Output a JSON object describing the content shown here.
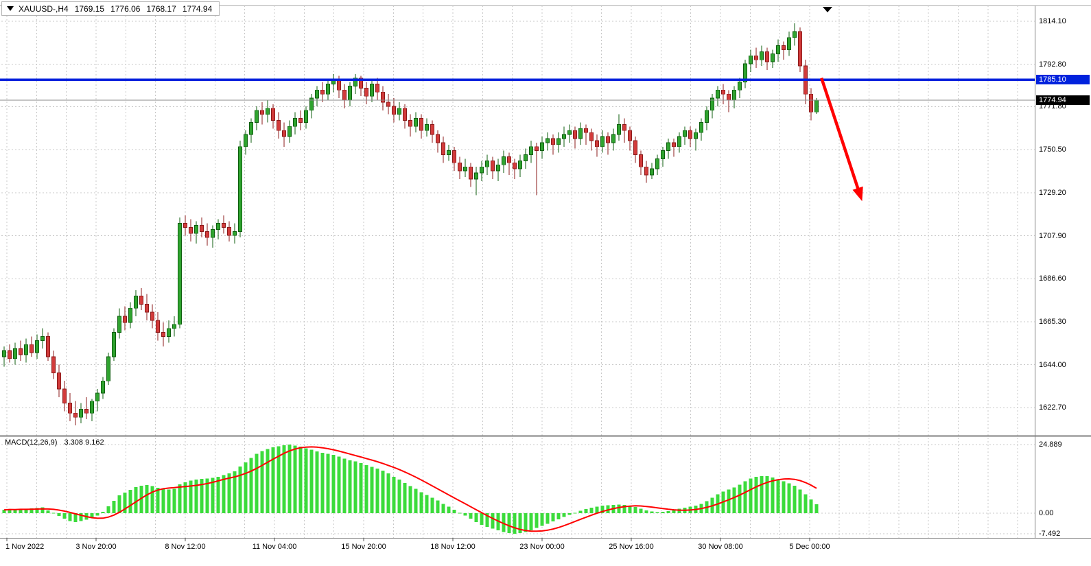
{
  "header": {
    "dropdown_icon": "triangle-down-icon",
    "symbol_period": "XAUUSD-,H4",
    "open": "1769.15",
    "high": "1776.06",
    "low": "1768.17",
    "close": "1774.94"
  },
  "colors": {
    "background": "#FFFFFF",
    "grid": "#C8C8C8",
    "up_body": "#2FA32F",
    "up_border": "#0E5E0E",
    "down_body": "#D23B3B",
    "down_border": "#8B1A1A",
    "resistance_line": "#0022DD",
    "current_price_flag": "#000000",
    "macd_histogram": "#3BDB3B",
    "macd_signal": "#FF0000",
    "arrow": "#FF0000"
  },
  "chart_data": [
    {
      "type": "candlestick",
      "symbol": "XAUUSD-",
      "timeframe": "H4",
      "title": "XAUUSD-,H4",
      "grid": true,
      "y_ticks": [
        "1814.10",
        "1792.80",
        "1771.80",
        "1750.50",
        "1729.20",
        "1707.90",
        "1686.60",
        "1665.30",
        "1644.00",
        "1622.70"
      ],
      "y_range": [
        1608.9,
        1821.9
      ],
      "x_tick_labels": [
        "1 Nov 2022",
        "3 Nov 20:00",
        "8 Nov 12:00",
        "11 Nov 04:00",
        "15 Nov 20:00",
        "18 Nov 12:00",
        "23 Nov 00:00",
        "25 Nov 16:00",
        "30 Nov 08:00",
        "5 Dec 00:00"
      ],
      "up_color": "#2FA32F",
      "up_wick": "#0E5E0E",
      "down_color": "#D23B3B",
      "down_wick": "#8B1A1A",
      "horizontal_line": {
        "price": 1785.1,
        "label": "1785.10",
        "color": "#0022DD"
      },
      "current_price": {
        "price": 1774.94,
        "label": "1774.94",
        "flag_color": "#000000"
      },
      "trend_arrow": {
        "name": "sell-signal-arrow",
        "from": {
          "bar": 148.9,
          "price": 1786.0
        },
        "to": {
          "bar": 156.3,
          "price": 1725.0
        },
        "color": "#FF0000"
      },
      "candles": [
        [
          1648,
          1653,
          1643,
          1651
        ],
        [
          1651,
          1654,
          1645,
          1647
        ],
        [
          1647,
          1655,
          1644,
          1652
        ],
        [
          1652,
          1656,
          1646,
          1649
        ],
        [
          1649,
          1657,
          1645,
          1654
        ],
        [
          1654,
          1658,
          1648,
          1650
        ],
        [
          1650,
          1659,
          1647,
          1656
        ],
        [
          1656,
          1662,
          1652,
          1658
        ],
        [
          1658,
          1660,
          1646,
          1648
        ],
        [
          1648,
          1651,
          1637,
          1640
        ],
        [
          1640,
          1644,
          1628,
          1632
        ],
        [
          1632,
          1636,
          1621,
          1625
        ],
        [
          1625,
          1630,
          1616,
          1620
        ],
        [
          1620,
          1626,
          1614,
          1618
        ],
        [
          1618,
          1625,
          1615,
          1622
        ],
        [
          1622,
          1628,
          1617,
          1620
        ],
        [
          1620,
          1627,
          1616,
          1626
        ],
        [
          1626,
          1632,
          1621,
          1630
        ],
        [
          1630,
          1638,
          1627,
          1636
        ],
        [
          1636,
          1650,
          1634,
          1648
        ],
        [
          1648,
          1662,
          1646,
          1660
        ],
        [
          1660,
          1672,
          1657,
          1668
        ],
        [
          1668,
          1673,
          1661,
          1665
        ],
        [
          1665,
          1675,
          1662,
          1672
        ],
        [
          1672,
          1681,
          1668,
          1678
        ],
        [
          1678,
          1682,
          1671,
          1674
        ],
        [
          1674,
          1679,
          1666,
          1670
        ],
        [
          1670,
          1674,
          1662,
          1666
        ],
        [
          1666,
          1670,
          1656,
          1660
        ],
        [
          1660,
          1665,
          1653,
          1658
        ],
        [
          1658,
          1666,
          1655,
          1662
        ],
        [
          1662,
          1668,
          1658,
          1664
        ],
        [
          1664,
          1717,
          1662,
          1714
        ],
        [
          1714,
          1718,
          1708,
          1712
        ],
        [
          1712,
          1716,
          1705,
          1709
        ],
        [
          1709,
          1715,
          1704,
          1713
        ],
        [
          1713,
          1717,
          1707,
          1710
        ],
        [
          1710,
          1714,
          1703,
          1707
        ],
        [
          1707,
          1713,
          1702,
          1711
        ],
        [
          1711,
          1716,
          1706,
          1714
        ],
        [
          1714,
          1718,
          1709,
          1712
        ],
        [
          1712,
          1715,
          1705,
          1708
        ],
        [
          1708,
          1714,
          1704,
          1710
        ],
        [
          1710,
          1755,
          1707,
          1752
        ],
        [
          1752,
          1760,
          1748,
          1758
        ],
        [
          1758,
          1766,
          1754,
          1764
        ],
        [
          1764,
          1772,
          1760,
          1770
        ],
        [
          1770,
          1774,
          1763,
          1768
        ],
        [
          1768,
          1775,
          1764,
          1771
        ],
        [
          1771,
          1773,
          1761,
          1765
        ],
        [
          1765,
          1769,
          1756,
          1760
        ],
        [
          1760,
          1764,
          1752,
          1757
        ],
        [
          1757,
          1765,
          1754,
          1762
        ],
        [
          1762,
          1769,
          1758,
          1766
        ],
        [
          1766,
          1770,
          1760,
          1764
        ],
        [
          1764,
          1772,
          1761,
          1770
        ],
        [
          1770,
          1778,
          1766,
          1776
        ],
        [
          1776,
          1782,
          1772,
          1780
        ],
        [
          1780,
          1784,
          1774,
          1778
        ],
        [
          1778,
          1785,
          1775,
          1783
        ],
        [
          1783,
          1788,
          1779,
          1785
        ],
        [
          1785,
          1787,
          1776,
          1780
        ],
        [
          1780,
          1783,
          1771,
          1775
        ],
        [
          1775,
          1784,
          1772,
          1782
        ],
        [
          1782,
          1788,
          1778,
          1786
        ],
        [
          1786,
          1787,
          1777,
          1781
        ],
        [
          1781,
          1784,
          1773,
          1777
        ],
        [
          1777,
          1785,
          1774,
          1783
        ],
        [
          1783,
          1786,
          1775,
          1779
        ],
        [
          1779,
          1782,
          1770,
          1774
        ],
        [
          1774,
          1778,
          1768,
          1772
        ],
        [
          1772,
          1776,
          1764,
          1768
        ],
        [
          1768,
          1774,
          1765,
          1771
        ],
        [
          1771,
          1773,
          1761,
          1765
        ],
        [
          1765,
          1768,
          1757,
          1762
        ],
        [
          1762,
          1769,
          1759,
          1766
        ],
        [
          1766,
          1768,
          1756,
          1760
        ],
        [
          1760,
          1766,
          1757,
          1763
        ],
        [
          1763,
          1765,
          1754,
          1758
        ],
        [
          1758,
          1760,
          1749,
          1754
        ],
        [
          1754,
          1757,
          1744,
          1748
        ],
        [
          1748,
          1753,
          1745,
          1750
        ],
        [
          1750,
          1752,
          1740,
          1744
        ],
        [
          1744,
          1747,
          1736,
          1740
        ],
        [
          1740,
          1746,
          1737,
          1742
        ],
        [
          1742,
          1744,
          1732,
          1736
        ],
        [
          1736,
          1742,
          1728,
          1739
        ],
        [
          1739,
          1745,
          1735,
          1742
        ],
        [
          1742,
          1748,
          1738,
          1745
        ],
        [
          1745,
          1747,
          1736,
          1740
        ],
        [
          1740,
          1746,
          1735,
          1743
        ],
        [
          1743,
          1750,
          1739,
          1747
        ],
        [
          1747,
          1749,
          1738,
          1744
        ],
        [
          1744,
          1746,
          1736,
          1741
        ],
        [
          1741,
          1748,
          1737,
          1745
        ],
        [
          1745,
          1751,
          1741,
          1748
        ],
        [
          1748,
          1755,
          1744,
          1752
        ],
        [
          1752,
          1754,
          1728,
          1750
        ],
        [
          1750,
          1757,
          1746,
          1754
        ],
        [
          1754,
          1759,
          1750,
          1756
        ],
        [
          1756,
          1758,
          1748,
          1753
        ],
        [
          1753,
          1759,
          1749,
          1756
        ],
        [
          1756,
          1762,
          1752,
          1758
        ],
        [
          1758,
          1763,
          1754,
          1760
        ],
        [
          1760,
          1762,
          1751,
          1756
        ],
        [
          1756,
          1764,
          1753,
          1761
        ],
        [
          1761,
          1763,
          1753,
          1759
        ],
        [
          1759,
          1761,
          1750,
          1755
        ],
        [
          1755,
          1758,
          1747,
          1752
        ],
        [
          1752,
          1760,
          1749,
          1757
        ],
        [
          1757,
          1759,
          1748,
          1754
        ],
        [
          1754,
          1761,
          1750,
          1758
        ],
        [
          1758,
          1768,
          1755,
          1763
        ],
        [
          1763,
          1766,
          1754,
          1760
        ],
        [
          1760,
          1762,
          1750,
          1755
        ],
        [
          1755,
          1757,
          1744,
          1748
        ],
        [
          1748,
          1750,
          1738,
          1742
        ],
        [
          1742,
          1745,
          1734,
          1738
        ],
        [
          1738,
          1744,
          1736,
          1741
        ],
        [
          1741,
          1748,
          1738,
          1746
        ],
        [
          1746,
          1752,
          1742,
          1750
        ],
        [
          1750,
          1756,
          1746,
          1754
        ],
        [
          1754,
          1756,
          1747,
          1752
        ],
        [
          1752,
          1759,
          1749,
          1757
        ],
        [
          1757,
          1762,
          1753,
          1760
        ],
        [
          1760,
          1762,
          1752,
          1756
        ],
        [
          1756,
          1761,
          1750,
          1759
        ],
        [
          1759,
          1766,
          1755,
          1764
        ],
        [
          1764,
          1772,
          1760,
          1770
        ],
        [
          1770,
          1778,
          1766,
          1776
        ],
        [
          1776,
          1782,
          1772,
          1780
        ],
        [
          1780,
          1783,
          1773,
          1778
        ],
        [
          1778,
          1780,
          1769,
          1775
        ],
        [
          1775,
          1782,
          1771,
          1780
        ],
        [
          1780,
          1786,
          1776,
          1784
        ],
        [
          1784,
          1795,
          1781,
          1793
        ],
        [
          1793,
          1800,
          1789,
          1797
        ],
        [
          1797,
          1801,
          1791,
          1795
        ],
        [
          1795,
          1802,
          1792,
          1799
        ],
        [
          1799,
          1801,
          1790,
          1794
        ],
        [
          1794,
          1800,
          1791,
          1798
        ],
        [
          1798,
          1805,
          1794,
          1802
        ],
        [
          1802,
          1804,
          1795,
          1800
        ],
        [
          1800,
          1809,
          1797,
          1806
        ],
        [
          1806,
          1813,
          1802,
          1809
        ],
        [
          1809,
          1811,
          1789,
          1792
        ],
        [
          1792,
          1795,
          1773,
          1778
        ],
        [
          1778,
          1781,
          1765,
          1769.15
        ],
        [
          1769.15,
          1776.06,
          1768.17,
          1774.94
        ]
      ]
    },
    {
      "type": "macd",
      "label": "MACD(12,26,9)",
      "values_text": "3.308 9.162",
      "main_value": 3.308,
      "signal_value": 9.162,
      "y_ticks": [
        "24.889",
        "0.00",
        "-7.492"
      ],
      "y_range": [
        -8.7,
        27.9
      ],
      "signal_period": 9,
      "histogram_color": "#3BDB3B",
      "signal_color": "#FF0000",
      "histogram": [
        1.2,
        1.5,
        1.3,
        1.6,
        1.4,
        1.7,
        1.9,
        2.1,
        1.0,
        0.2,
        -1.0,
        -2.0,
        -2.8,
        -3.2,
        -2.9,
        -2.4,
        -1.6,
        -0.8,
        0.5,
        2.5,
        4.5,
        6.5,
        7.5,
        8.5,
        9.5,
        10.0,
        10.2,
        9.8,
        9.2,
        8.8,
        8.6,
        8.8,
        10.5,
        11.2,
        11.8,
        12.2,
        12.5,
        12.6,
        12.8,
        13.2,
        13.8,
        14.5,
        15.2,
        17.0,
        18.5,
        20.0,
        21.5,
        22.5,
        23.3,
        23.9,
        24.3,
        24.7,
        24.889,
        24.6,
        24.2,
        23.6,
        23.0,
        22.4,
        21.9,
        21.5,
        21.2,
        20.6,
        19.8,
        19.2,
        18.8,
        18.2,
        17.4,
        16.8,
        16.2,
        15.4,
        14.4,
        13.2,
        12.2,
        11.0,
        9.8,
        8.8,
        7.6,
        6.6,
        5.6,
        4.6,
        3.4,
        2.4,
        1.2,
        0.2,
        -0.8,
        -2.0,
        -3.2,
        -4.2,
        -5.0,
        -5.6,
        -6.2,
        -6.8,
        -7.2,
        -7.492,
        -7.2,
        -6.8,
        -6.2,
        -5.4,
        -4.6,
        -3.8,
        -3.0,
        -2.2,
        -1.4,
        -0.6,
        0.2,
        0.9,
        1.5,
        2.0,
        2.4,
        2.7,
        2.9,
        3.0,
        3.1,
        3.0,
        2.7,
        2.2,
        1.6,
        1.0,
        0.6,
        0.4,
        0.5,
        0.8,
        1.2,
        1.6,
        2.0,
        2.4,
        2.8,
        3.4,
        4.4,
        5.6,
        6.8,
        7.8,
        8.6,
        9.4,
        10.4,
        11.6,
        12.6,
        13.2,
        13.5,
        13.4,
        13.0,
        12.4,
        11.6,
        10.8,
        10.0,
        8.6,
        6.8,
        5.0,
        3.308
      ]
    }
  ]
}
